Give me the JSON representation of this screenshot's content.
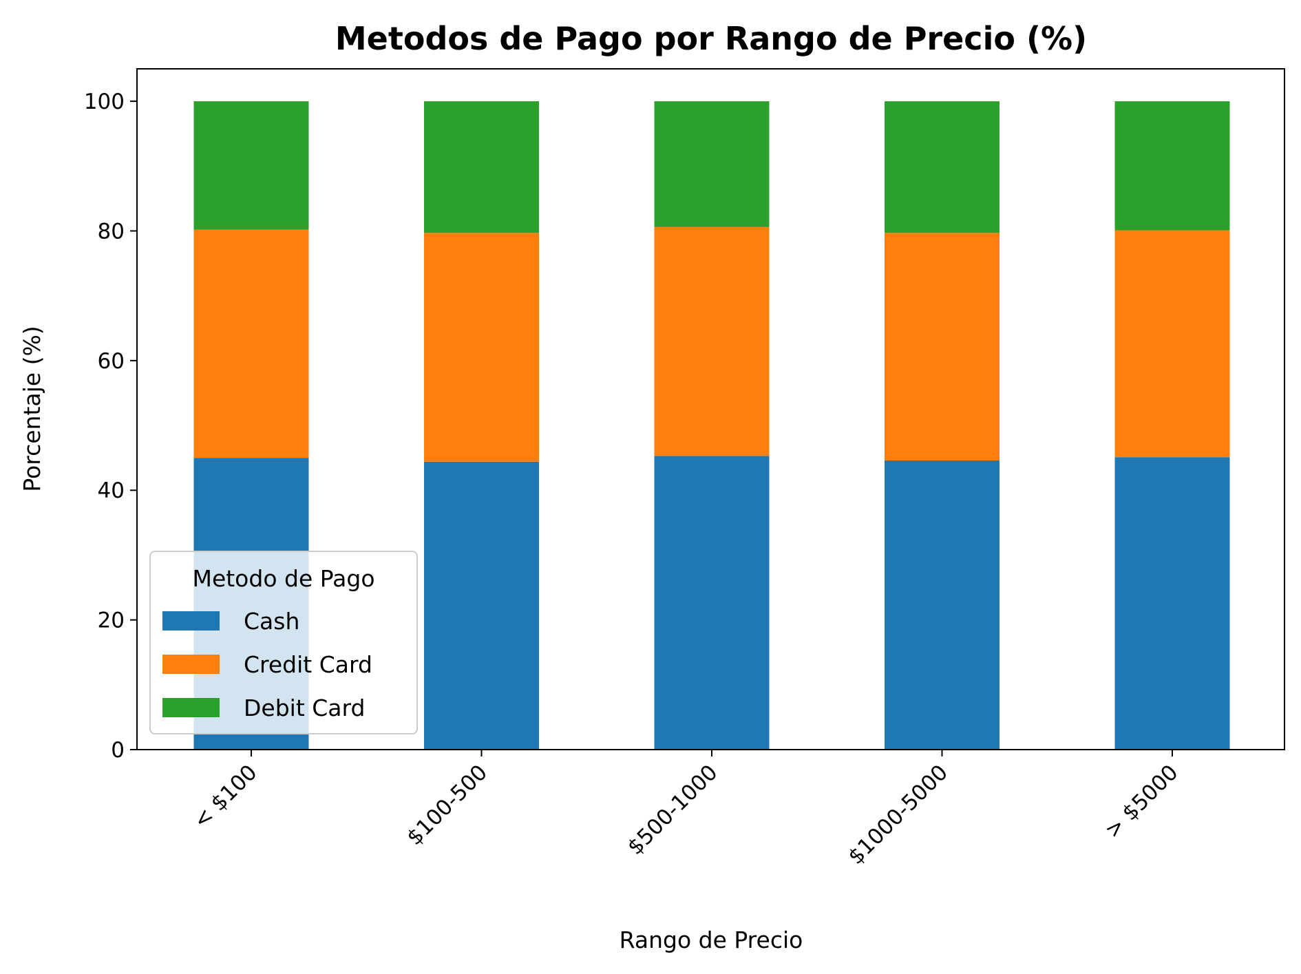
{
  "chart_data": {
    "type": "bar",
    "stacked": true,
    "title": "Metodos de Pago por Rango de Precio (%)",
    "xlabel": "Rango de Precio",
    "ylabel": "Porcentaje (%)",
    "categories": [
      "< $100",
      "$100-500",
      "$500-1000",
      "$1000-5000",
      "> $5000"
    ],
    "ylim": [
      0,
      105
    ],
    "yticks": [
      0,
      20,
      40,
      60,
      80,
      100
    ],
    "grid": false,
    "legend": {
      "title": "Metodo de Pago",
      "placement": "lower-left"
    },
    "series": [
      {
        "name": "Cash",
        "color": "#1f77b4",
        "values": [
          45.0,
          44.4,
          45.3,
          44.6,
          45.1
        ]
      },
      {
        "name": "Credit Card",
        "color": "#ff7f0e",
        "values": [
          35.2,
          35.3,
          35.3,
          35.1,
          35.0
        ]
      },
      {
        "name": "Debit Card",
        "color": "#2ca02c",
        "values": [
          19.8,
          20.3,
          19.4,
          20.3,
          19.9
        ]
      }
    ]
  }
}
